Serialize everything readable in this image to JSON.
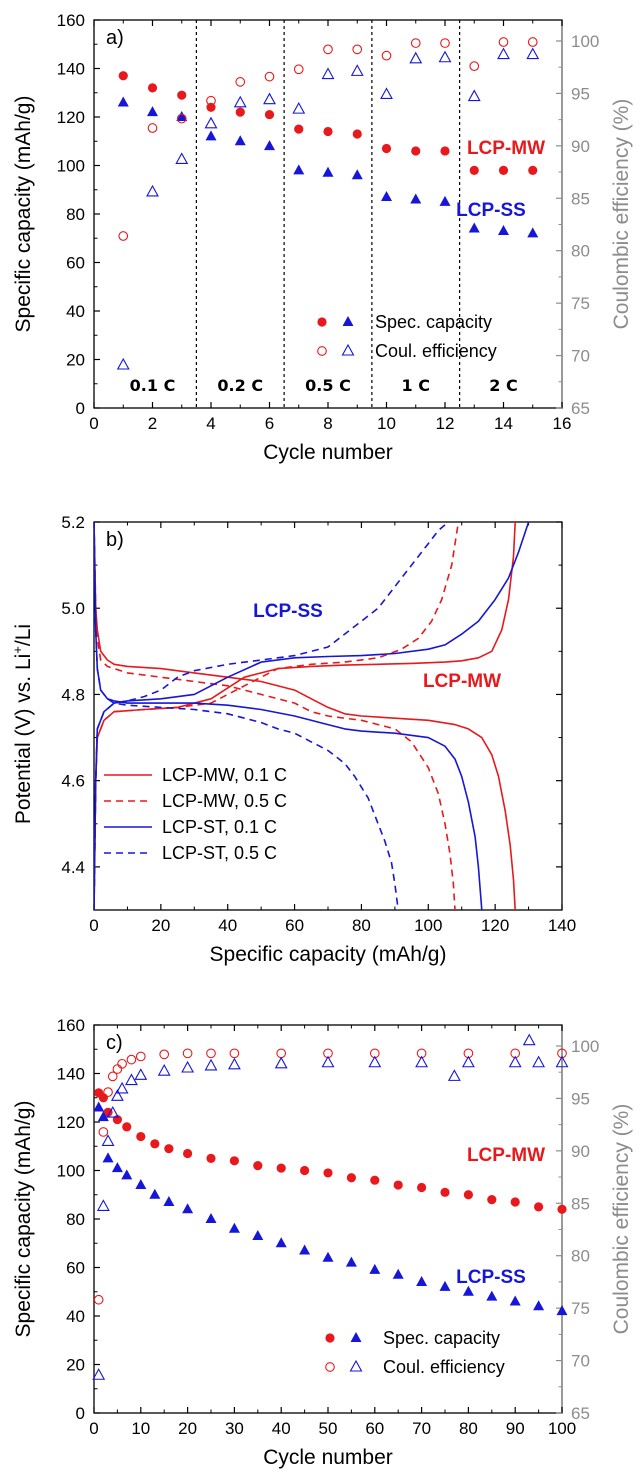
{
  "colors": {
    "mw": "#e8191c",
    "ss": "#1616d8",
    "right_axis": "#8c8c8c"
  },
  "chart_data": [
    {
      "type": "scatter",
      "panel_label": "a)",
      "xlabel": "Cycle number",
      "ylabel": "Specific capacity (mAh/g)",
      "y2label": "Coulombic efficiency (%)",
      "xlim": [
        0,
        16
      ],
      "ylim": [
        0,
        160
      ],
      "y2lim": [
        65,
        102
      ],
      "x_ticks": [
        "0",
        "2",
        "4",
        "6",
        "8",
        "10",
        "12",
        "14",
        "16"
      ],
      "y_ticks": [
        "0",
        "20",
        "40",
        "60",
        "80",
        "100",
        "120",
        "140",
        "160"
      ],
      "y2_ticks": [
        "65",
        "70",
        "75",
        "80",
        "85",
        "90",
        "95",
        "100"
      ],
      "x_divisions": [
        3.5,
        6.5,
        9.5,
        12.5
      ],
      "rate_labels": [
        {
          "text": "0.1 C",
          "x": 2
        },
        {
          "text": "0.2 C",
          "x": 5
        },
        {
          "text": "0.5 C",
          "x": 8
        },
        {
          "text": "1 C",
          "x": 11
        },
        {
          "text": "2 C",
          "x": 14
        }
      ],
      "series_labels": [
        {
          "text": "LCP-MW",
          "series": "mw"
        },
        {
          "text": "LCP-SS",
          "series": "ss"
        }
      ],
      "legend": {
        "items": [
          "Spec. capacity",
          "Coul. efficiency"
        ],
        "position": "lower-right"
      },
      "series": [
        {
          "key": "mw_capacity",
          "axis": "left",
          "marker": "circle-filled",
          "color": "mw",
          "x": [
            1,
            2,
            3,
            4,
            5,
            6,
            7,
            8,
            9,
            10,
            11,
            12,
            13,
            14,
            15
          ],
          "values": [
            137,
            132,
            129,
            124,
            122,
            121,
            115,
            114,
            113,
            107,
            106,
            106,
            98,
            98,
            98
          ]
        },
        {
          "key": "ss_capacity",
          "axis": "left",
          "marker": "triangle-filled",
          "color": "ss",
          "x": [
            1,
            2,
            3,
            4,
            5,
            6,
            7,
            8,
            9,
            10,
            11,
            12,
            13,
            14,
            15
          ],
          "values": [
            126,
            122,
            120,
            112,
            110,
            108,
            98,
            97,
            96,
            87,
            86,
            85,
            74,
            73,
            72
          ]
        },
        {
          "key": "mw_efficiency",
          "axis": "right",
          "marker": "circle-open",
          "color": "mw",
          "x": [
            1,
            2,
            3,
            4,
            5,
            6,
            7,
            8,
            9,
            10,
            11,
            12,
            13,
            14,
            15
          ],
          "values": [
            81.4,
            91.7,
            92.6,
            94.3,
            96.1,
            96.6,
            97.3,
            99.2,
            99.2,
            98.6,
            99.8,
            99.8,
            97.6,
            99.9,
            99.9
          ]
        },
        {
          "key": "ss_efficiency",
          "axis": "right",
          "marker": "triangle-open",
          "color": "ss",
          "x": [
            1,
            2,
            3,
            4,
            5,
            6,
            7,
            8,
            9,
            10,
            11,
            12,
            13,
            14,
            15
          ],
          "values": [
            69.1,
            85.6,
            88.7,
            92.1,
            94.1,
            94.4,
            93.5,
            96.8,
            97.1,
            94.9,
            98.3,
            98.4,
            94.7,
            98.7,
            98.7
          ]
        }
      ]
    },
    {
      "type": "line",
      "panel_label": "b)",
      "xlabel": "Specific capacity (mAh/g)",
      "ylabel_main": "Potential (V) vs. Li",
      "ylabel_sup": "+",
      "ylabel_tail": "/Li",
      "xlim": [
        0,
        140
      ],
      "ylim": [
        4.3,
        5.2
      ],
      "x_ticks": [
        "0",
        "20",
        "40",
        "60",
        "80",
        "100",
        "120",
        "140"
      ],
      "y_ticks": [
        "4.4",
        "4.6",
        "4.8",
        "5.0",
        "5.2"
      ],
      "series_labels": [
        {
          "text": "LCP-SS",
          "series": "ss"
        },
        {
          "text": "LCP-MW",
          "series": "mw"
        }
      ],
      "legend": {
        "position": "lower-left"
      },
      "series": [
        {
          "name": "LCP-MW, 0.1 C",
          "color": "mw",
          "dash": "solid",
          "charge": {
            "x": [
              0,
              0.5,
              1,
              3,
              6,
              15,
              25,
              35,
              45,
              55,
              65,
              75,
              85,
              95,
              105,
              110,
              115,
              119,
              122,
              124,
              125.5,
              126
            ],
            "y": [
              4.3,
              4.6,
              4.7,
              4.74,
              4.76,
              4.765,
              4.77,
              4.79,
              4.84,
              4.86,
              4.865,
              4.868,
              4.87,
              4.872,
              4.875,
              4.878,
              4.885,
              4.9,
              4.95,
              5.02,
              5.12,
              5.2
            ]
          },
          "discharge": {
            "x": [
              0,
              0.5,
              1,
              2,
              4,
              6,
              10,
              20,
              30,
              40,
              50,
              60,
              65,
              70,
              75,
              80,
              90,
              100,
              108,
              112,
              116,
              119,
              121,
              123,
              124.5,
              125.5,
              126
            ],
            "y": [
              5.2,
              5.0,
              4.95,
              4.9,
              4.88,
              4.87,
              4.865,
              4.86,
              4.85,
              4.84,
              4.83,
              4.81,
              4.79,
              4.77,
              4.755,
              4.75,
              4.745,
              4.74,
              4.73,
              4.72,
              4.7,
              4.66,
              4.61,
              4.53,
              4.45,
              4.37,
              4.3
            ]
          }
        },
        {
          "name": "LCP-MW, 0.5 C",
          "color": "mw",
          "dash": "dash",
          "charge": {
            "x": [
              0,
              0.5,
              1,
              3,
              6,
              15,
              25,
              35,
              45,
              55,
              65,
              75,
              85,
              92,
              97,
              101,
              104,
              107,
              109
            ],
            "y": [
              4.3,
              4.6,
              4.7,
              4.74,
              4.76,
              4.765,
              4.77,
              4.78,
              4.82,
              4.86,
              4.87,
              4.875,
              4.885,
              4.905,
              4.93,
              4.97,
              5.02,
              5.1,
              5.2
            ]
          },
          "discharge": {
            "x": [
              0,
              0.5,
              1,
              2,
              4,
              6,
              10,
              20,
              30,
              40,
              50,
              60,
              65,
              70,
              75,
              80,
              85,
              90,
              95,
              100,
              103,
              105,
              106.5,
              107.5,
              108
            ],
            "y": [
              5.2,
              5.0,
              4.93,
              4.88,
              4.865,
              4.86,
              4.85,
              4.84,
              4.83,
              4.82,
              4.8,
              4.78,
              4.76,
              4.75,
              4.745,
              4.74,
              4.73,
              4.72,
              4.69,
              4.63,
              4.57,
              4.5,
              4.43,
              4.36,
              4.3
            ]
          }
        },
        {
          "name": "LCP-ST, 0.1 C",
          "color": "ss",
          "dash": "solid",
          "charge": {
            "x": [
              0,
              0.5,
              1,
              3,
              6,
              10,
              20,
              30,
              40,
              50,
              60,
              70,
              80,
              90,
              100,
              105,
              110,
              115,
              120,
              124,
              127,
              130
            ],
            "y": [
              4.3,
              4.6,
              4.72,
              4.76,
              4.78,
              4.785,
              4.79,
              4.8,
              4.84,
              4.875,
              4.885,
              4.888,
              4.89,
              4.895,
              4.905,
              4.915,
              4.94,
              4.97,
              5.02,
              5.07,
              5.13,
              5.2
            ]
          },
          "discharge": {
            "x": [
              0,
              0.5,
              1,
              2,
              4,
              6,
              10,
              20,
              30,
              40,
              50,
              60,
              70,
              75,
              80,
              90,
              100,
              105,
              108,
              110,
              112,
              114,
              115,
              116
            ],
            "y": [
              5.2,
              4.95,
              4.86,
              4.81,
              4.79,
              4.785,
              4.78,
              4.78,
              4.78,
              4.775,
              4.765,
              4.75,
              4.73,
              4.72,
              4.715,
              4.71,
              4.7,
              4.68,
              4.65,
              4.61,
              4.55,
              4.47,
              4.4,
              4.3
            ]
          }
        },
        {
          "name": "LCP-ST, 0.5 C",
          "color": "ss",
          "dash": "dash",
          "charge": {
            "x": [
              0,
              0.5,
              1,
              3,
              6,
              10,
              15,
              20,
              25,
              30,
              40,
              50,
              60,
              70,
              75,
              80,
              85,
              88,
              92,
              96,
              100,
              103,
              106
            ],
            "y": [
              4.3,
              4.6,
              4.72,
              4.76,
              4.78,
              4.785,
              4.795,
              4.81,
              4.84,
              4.855,
              4.87,
              4.88,
              4.89,
              4.91,
              4.94,
              4.97,
              5.0,
              5.03,
              5.07,
              5.11,
              5.15,
              5.18,
              5.2
            ]
          },
          "discharge": {
            "x": [
              0,
              0.5,
              1,
              2,
              4,
              6,
              10,
              20,
              30,
              40,
              50,
              55,
              60,
              65,
              70,
              75,
              78,
              82,
              85,
              87,
              89,
              90,
              91
            ],
            "y": [
              5.2,
              4.95,
              4.86,
              4.81,
              4.79,
              4.78,
              4.775,
              4.77,
              4.765,
              4.755,
              4.735,
              4.72,
              4.71,
              4.69,
              4.67,
              4.64,
              4.61,
              4.56,
              4.5,
              4.46,
              4.41,
              4.36,
              4.3
            ]
          }
        }
      ]
    },
    {
      "type": "scatter",
      "panel_label": "c)",
      "xlabel": "Cycle number",
      "ylabel": "Specific capacity (mAh/g)",
      "y2label": "Coulombic efficiency (%)",
      "xlim": [
        0,
        100
      ],
      "ylim": [
        0,
        160
      ],
      "y2lim": [
        65,
        102
      ],
      "x_ticks": [
        "0",
        "10",
        "20",
        "30",
        "40",
        "50",
        "60",
        "70",
        "80",
        "90",
        "100"
      ],
      "y_ticks": [
        "0",
        "20",
        "40",
        "60",
        "80",
        "100",
        "120",
        "140",
        "160"
      ],
      "y2_ticks": [
        "65",
        "70",
        "75",
        "80",
        "85",
        "90",
        "95",
        "100"
      ],
      "series_labels": [
        {
          "text": "LCP-MW",
          "series": "mw"
        },
        {
          "text": "LCP-SS",
          "series": "ss"
        }
      ],
      "legend": {
        "items": [
          "Spec. capacity",
          "Coul. efficiency"
        ],
        "position": "lower-right"
      },
      "series": [
        {
          "key": "mw_capacity",
          "axis": "left",
          "marker": "circle-filled",
          "color": "mw",
          "x": [
            1,
            2,
            3,
            5,
            7,
            10,
            13,
            16,
            20,
            25,
            30,
            35,
            40,
            45,
            50,
            55,
            60,
            65,
            70,
            75,
            80,
            85,
            90,
            95,
            100
          ],
          "values": [
            132,
            130,
            124,
            121,
            118,
            114,
            111,
            109,
            107,
            105,
            104,
            102,
            101,
            100,
            99,
            97,
            96,
            94,
            93,
            91,
            90,
            88,
            87,
            85,
            84
          ]
        },
        {
          "key": "ss_capacity",
          "axis": "left",
          "marker": "triangle-filled",
          "color": "ss",
          "x": [
            1,
            2,
            3,
            5,
            7,
            10,
            13,
            16,
            20,
            25,
            30,
            35,
            40,
            45,
            50,
            55,
            60,
            65,
            70,
            75,
            80,
            85,
            90,
            95,
            100
          ],
          "values": [
            126,
            122,
            105,
            101,
            98,
            94,
            90,
            87,
            84,
            80,
            76,
            73,
            70,
            67,
            64,
            62,
            59,
            57,
            54,
            52,
            50,
            48,
            46,
            44,
            42
          ]
        },
        {
          "key": "mw_efficiency",
          "axis": "right",
          "marker": "circle-open",
          "color": "mw",
          "x": [
            1,
            2,
            3,
            4,
            5,
            6,
            8,
            10,
            15,
            20,
            25,
            30,
            40,
            50,
            60,
            70,
            80,
            90,
            100
          ],
          "values": [
            75.8,
            91.8,
            95.6,
            97.1,
            97.8,
            98.3,
            98.7,
            99.0,
            99.2,
            99.3,
            99.3,
            99.3,
            99.3,
            99.3,
            99.3,
            99.3,
            99.3,
            99.3,
            99.3
          ]
        },
        {
          "key": "ss_efficiency",
          "axis": "right",
          "marker": "triangle-open",
          "color": "ss",
          "x": [
            1,
            2,
            3,
            4,
            5,
            6,
            8,
            10,
            15,
            20,
            25,
            30,
            40,
            50,
            60,
            70,
            77,
            80,
            90,
            93,
            95,
            100
          ],
          "values": [
            68.6,
            84.7,
            90.9,
            93.6,
            95.2,
            95.9,
            96.7,
            97.2,
            97.6,
            97.9,
            98.1,
            98.2,
            98.3,
            98.4,
            98.4,
            98.4,
            97.1,
            98.4,
            98.4,
            100.5,
            98.4,
            98.4
          ]
        }
      ]
    }
  ]
}
